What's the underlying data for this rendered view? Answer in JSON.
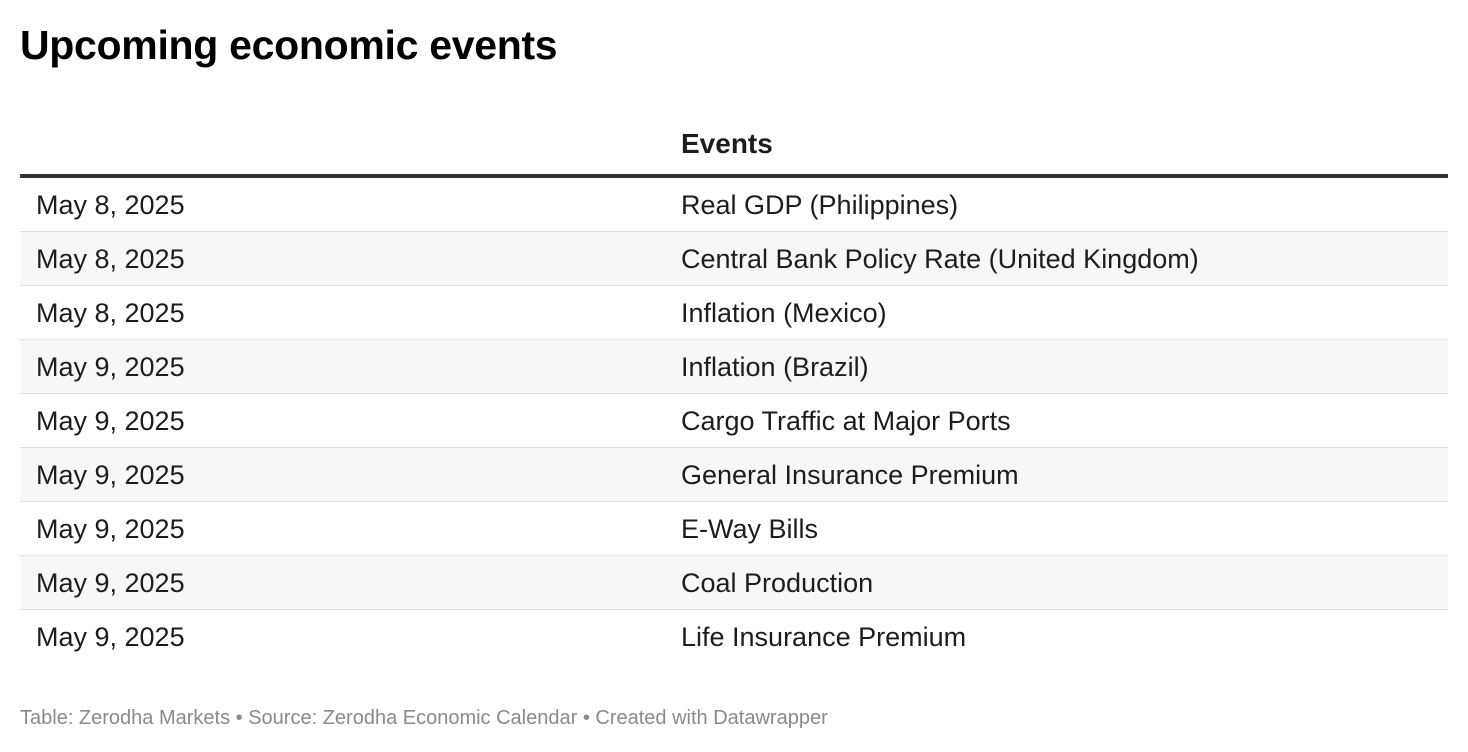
{
  "title": "Upcoming economic events",
  "chart_data": {
    "type": "table",
    "columns": [
      "",
      "Events"
    ],
    "rows": [
      {
        "date": "May 8, 2025",
        "event": "Real GDP (Philippines)"
      },
      {
        "date": "May 8, 2025",
        "event": "Central Bank Policy Rate (United Kingdom)"
      },
      {
        "date": "May 8, 2025",
        "event": "Inflation (Mexico)"
      },
      {
        "date": "May 9, 2025",
        "event": "Inflation (Brazil)"
      },
      {
        "date": "May 9, 2025",
        "event": "Cargo Traffic at Major Ports"
      },
      {
        "date": "May 9, 2025",
        "event": "General Insurance Premium"
      },
      {
        "date": "May 9, 2025",
        "event": "E-Way Bills"
      },
      {
        "date": "May 9, 2025",
        "event": "Coal Production"
      },
      {
        "date": "May 9, 2025",
        "event": "Life Insurance Premium"
      }
    ]
  },
  "footer": "Table: Zerodha Markets • Source: Zerodha Economic Calendar • Created with Datawrapper"
}
